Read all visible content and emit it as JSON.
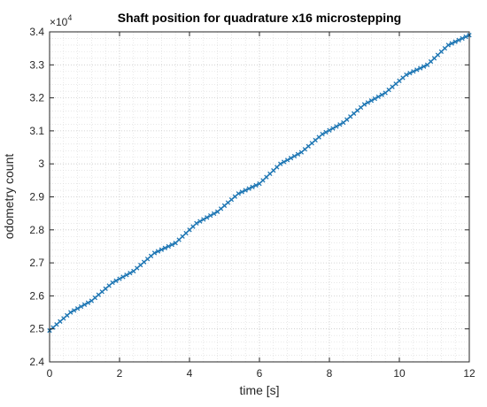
{
  "chart_data": {
    "type": "line",
    "title": "Shaft position for quadrature x16 microstepping",
    "xlabel": "time [s]",
    "ylabel": "odometry count",
    "xlim": [
      0,
      12
    ],
    "ylim": [
      2.4,
      3.4
    ],
    "y_exponent_label": "×10",
    "y_exponent_power": "4",
    "x_ticks": [
      "0",
      "2",
      "4",
      "6",
      "8",
      "10",
      "12"
    ],
    "y_ticks": [
      "2.4",
      "2.5",
      "2.6",
      "2.7",
      "2.8",
      "2.9",
      "3",
      "3.1",
      "3.2",
      "3.3",
      "3.4"
    ],
    "grid": "major and minor",
    "marker": "x",
    "colors": {
      "series": "#1f77b4",
      "grid": "#d9d9d9",
      "axis": "#262626"
    },
    "series": [
      {
        "x": [
          0,
          0.6,
          1.2,
          1.8,
          2.4,
          3.0,
          3.6,
          4.2,
          4.8,
          5.4,
          6.0,
          6.6,
          7.2,
          7.8,
          8.4,
          9.0,
          9.6,
          10.2,
          10.8,
          11.4,
          12.0
        ],
        "values": [
          2.495,
          2.55,
          2.585,
          2.64,
          2.675,
          2.73,
          2.76,
          2.82,
          2.855,
          2.91,
          2.94,
          3.0,
          3.035,
          3.09,
          3.125,
          3.18,
          3.215,
          3.27,
          3.3,
          3.36,
          3.39
        ]
      }
    ]
  }
}
